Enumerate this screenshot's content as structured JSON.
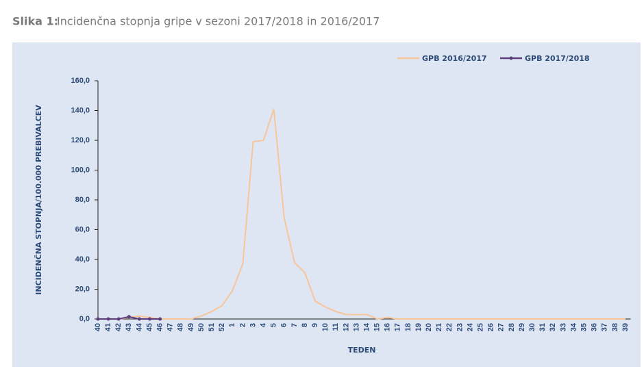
{
  "chart_data": {
    "type": "line",
    "title_prefix": "Slika 1:",
    "title": "Incidenčna stopnja gripe v sezoni 2017/2018 in 2016/2017",
    "ylabel": "INCIDENČNA STOPNJA/100.000 PREBIVALCEV",
    "xlabel": "TEDEN",
    "categories": [
      "40",
      "41",
      "42",
      "43",
      "44",
      "45",
      "46",
      "47",
      "48",
      "49",
      "50",
      "51",
      "52",
      "1",
      "2",
      "3",
      "4",
      "5",
      "6",
      "7",
      "8",
      "9",
      "10",
      "11",
      "12",
      "13",
      "14",
      "15",
      "16",
      "17",
      "18",
      "19",
      "20",
      "21",
      "22",
      "23",
      "24",
      "25",
      "26",
      "27",
      "28",
      "29",
      "30",
      "31",
      "32",
      "33",
      "34",
      "35",
      "36",
      "37",
      "38",
      "39"
    ],
    "series": [
      {
        "name": "GPB 2016/2017",
        "color": "#f8c59a",
        "markers": false,
        "values": [
          0,
          0,
          0,
          1,
          2,
          1,
          0,
          0,
          0,
          0,
          2,
          5,
          9,
          19,
          37,
          119,
          120,
          141,
          68,
          38,
          31,
          12,
          8,
          5,
          3,
          3,
          3,
          0,
          1,
          0,
          0,
          0,
          0,
          0,
          0,
          0,
          0,
          0,
          0,
          0,
          0,
          0,
          0,
          0,
          0,
          0,
          0,
          0,
          0,
          0,
          0,
          0
        ]
      },
      {
        "name": "GPB 2017/2018",
        "color": "#5b3d7c",
        "markers": true,
        "values": [
          0,
          0,
          0,
          1.5,
          0,
          0,
          0,
          null,
          null,
          null,
          null,
          null,
          null,
          null,
          null,
          null,
          null,
          null,
          null,
          null,
          null,
          null,
          null,
          null,
          null,
          null,
          null,
          null,
          null,
          null,
          null,
          null,
          null,
          null,
          null,
          null,
          null,
          null,
          null,
          null,
          null,
          null,
          null,
          null,
          null,
          null,
          null,
          null,
          null,
          null,
          null,
          null
        ]
      }
    ],
    "ylim": [
      0,
      160
    ],
    "yticks": [
      {
        "value": 0,
        "label": "0,0"
      },
      {
        "value": 20,
        "label": "20,0"
      },
      {
        "value": 40,
        "label": "40,0"
      },
      {
        "value": 60,
        "label": "60,0"
      },
      {
        "value": 80,
        "label": "80,0"
      },
      {
        "value": 100,
        "label": "100,0"
      },
      {
        "value": 120,
        "label": "120,0"
      },
      {
        "value": 140,
        "label": "140,0"
      },
      {
        "value": 160,
        "label": "160,0"
      }
    ],
    "grid": false,
    "legend": "top-right"
  }
}
